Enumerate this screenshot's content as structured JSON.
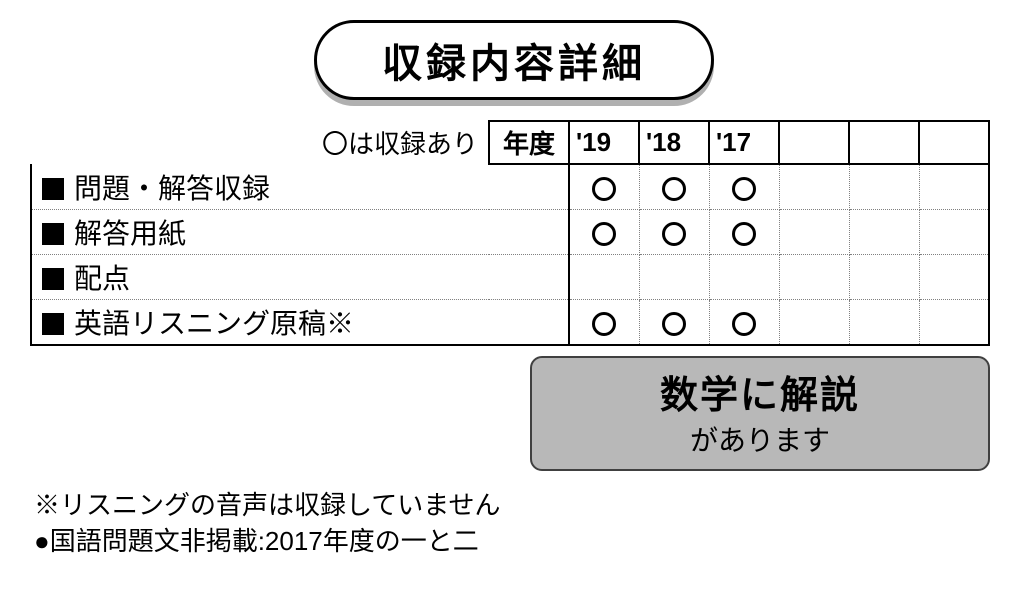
{
  "title": "収録内容詳細",
  "legend_text": "〇は収録あり",
  "year_header": "年度",
  "years": [
    "'19",
    "'18",
    "'17",
    "",
    "",
    ""
  ],
  "rows": [
    {
      "label": "問題・解答収録",
      "marks": [
        true,
        true,
        true,
        false,
        false,
        false
      ]
    },
    {
      "label": "解答用紙",
      "marks": [
        true,
        true,
        true,
        false,
        false,
        false
      ]
    },
    {
      "label": "配点",
      "marks": [
        false,
        false,
        false,
        false,
        false,
        false
      ]
    },
    {
      "label": "英語リスニング原稿※",
      "marks": [
        true,
        true,
        true,
        false,
        false,
        false
      ]
    }
  ],
  "note": {
    "big": "数学に解説",
    "small": "があります"
  },
  "footnotes": [
    "※リスニングの音声は収録していません",
    "●国語問題文非掲載:2017年度の一と二"
  ],
  "colors": {
    "badge_shadow": "#b0b0b0",
    "note_bg": "#b8b8b8",
    "note_border": "#404040",
    "dotted": "#808080",
    "text": "#000000",
    "bg": "#ffffff"
  }
}
